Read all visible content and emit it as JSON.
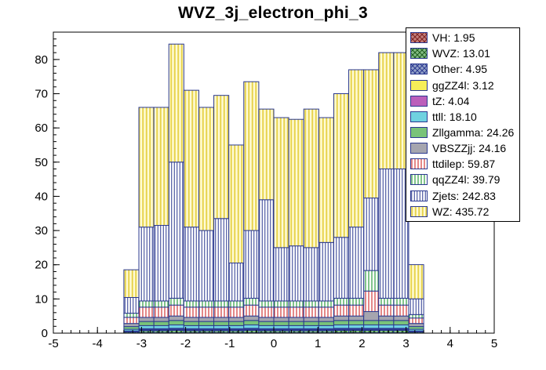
{
  "title": "WVZ_3j_electron_phi_3",
  "chart_data": {
    "type": "bar",
    "stacked": true,
    "title": "WVZ_3j_electron_phi_3",
    "xlabel": "",
    "ylabel": "",
    "grid": false,
    "legend_position": "top-right",
    "line_color": "#2b3990",
    "xlim": [
      -5,
      5
    ],
    "ylim": [
      0,
      88
    ],
    "x_ticks": [
      -5,
      -4,
      -3,
      -2,
      -1,
      0,
      1,
      2,
      3,
      4,
      5
    ],
    "y_ticks": [
      0,
      10,
      20,
      30,
      40,
      50,
      60,
      70,
      80
    ],
    "x_minor_step": 0.2,
    "y_minor_step": 2,
    "bin_edges": [
      -3.4,
      -3.06,
      -2.72,
      -2.38,
      -2.04,
      -1.7,
      -1.36,
      -1.02,
      -0.68,
      -0.34,
      0,
      0.34,
      0.68,
      1.02,
      1.36,
      1.7,
      2.04,
      2.38,
      2.72,
      3.06,
      3.4
    ],
    "series": [
      {
        "name": "vh",
        "legend_label": "VH: 1.95",
        "integral": 1.95,
        "fill": "url(#pat-vh)",
        "color": "#c4807c",
        "values": [
          0.05,
          0.1,
          0.1,
          0.1,
          0.1,
          0.1,
          0.1,
          0.1,
          0.1,
          0.1,
          0.1,
          0.1,
          0.1,
          0.1,
          0.1,
          0.1,
          0.1,
          0.1,
          0.1,
          0.05
        ]
      },
      {
        "name": "wvz",
        "legend_label": "WVZ: 13.01",
        "integral": 13.01,
        "fill": "url(#pat-wvz)",
        "color": "#84bd84",
        "values": [
          0.3,
          0.6,
          0.6,
          0.7,
          0.6,
          0.6,
          0.6,
          0.6,
          0.7,
          0.6,
          0.6,
          0.6,
          0.6,
          0.6,
          0.7,
          0.7,
          0.7,
          0.7,
          0.7,
          0.3
        ]
      },
      {
        "name": "other",
        "legend_label": "Other: 4.95",
        "integral": 4.95,
        "fill": "url(#pat-other)",
        "color": "#93a2c8",
        "values": [
          0.1,
          0.25,
          0.25,
          0.25,
          0.25,
          0.25,
          0.25,
          0.25,
          0.25,
          0.25,
          0.25,
          0.25,
          0.25,
          0.25,
          0.25,
          0.25,
          0.25,
          0.25,
          0.25,
          0.1
        ]
      },
      {
        "name": "ggzz4l",
        "legend_label": "ggZZ4l: 3.12",
        "integral": 3.12,
        "fill": "#f6ee58",
        "color": "#f6ee58",
        "values": [
          0.08,
          0.16,
          0.16,
          0.16,
          0.16,
          0.16,
          0.16,
          0.16,
          0.16,
          0.16,
          0.16,
          0.16,
          0.16,
          0.16,
          0.16,
          0.16,
          0.16,
          0.16,
          0.16,
          0.08
        ]
      },
      {
        "name": "tz",
        "legend_label": "tZ: 4.04",
        "integral": 4.04,
        "fill": "#bb5fbb",
        "color": "#bb5fbb",
        "values": [
          0.1,
          0.2,
          0.2,
          0.2,
          0.2,
          0.2,
          0.2,
          0.2,
          0.2,
          0.2,
          0.2,
          0.2,
          0.2,
          0.2,
          0.2,
          0.2,
          0.2,
          0.2,
          0.2,
          0.1
        ]
      },
      {
        "name": "ttll",
        "legend_label": "ttll: 18.10",
        "integral": 18.1,
        "fill": "#6fd2e0",
        "color": "#6fd2e0",
        "values": [
          0.5,
          0.9,
          0.9,
          1.0,
          0.9,
          0.9,
          0.9,
          0.9,
          1.0,
          0.9,
          0.9,
          0.9,
          0.9,
          0.9,
          1.0,
          1.0,
          1.0,
          1.0,
          1.0,
          0.5
        ]
      },
      {
        "name": "zllgamma",
        "legend_label": "Zllgamma: 24.26",
        "integral": 24.26,
        "fill": "#79c379",
        "color": "#79c379",
        "values": [
          0.8,
          1.2,
          1.2,
          1.3,
          1.2,
          1.2,
          1.2,
          1.2,
          1.3,
          1.2,
          1.2,
          1.2,
          1.2,
          1.2,
          1.3,
          1.3,
          1.3,
          1.3,
          1.3,
          0.8
        ]
      },
      {
        "name": "vbszzjj",
        "legend_label": "VBSZZjj: 24.16",
        "integral": 24.16,
        "fill": "#a5a5af",
        "color": "#a5a5af",
        "values": [
          0.9,
          1.2,
          1.2,
          1.3,
          1.2,
          1.2,
          1.2,
          1.2,
          1.3,
          1.2,
          1.2,
          1.2,
          1.2,
          1.2,
          1.3,
          1.3,
          2.6,
          1.3,
          1.3,
          0.9
        ]
      },
      {
        "name": "ttdilep",
        "legend_label": "ttdilep: 59.87",
        "integral": 59.87,
        "fill": "url(#pat-ttdilep)",
        "color": "#d23a3a",
        "values": [
          1.8,
          3.0,
          3.0,
          3.2,
          3.0,
          3.0,
          3.0,
          3.0,
          3.2,
          3.0,
          3.0,
          3.0,
          3.0,
          3.0,
          3.2,
          3.2,
          6.0,
          3.2,
          3.2,
          1.6
        ]
      },
      {
        "name": "qqzz4l",
        "legend_label": "qqZZ4l: 39.79",
        "integral": 39.79,
        "fill": "url(#pat-qqzz)",
        "color": "#2f9e3f",
        "values": [
          1.2,
          1.8,
          1.8,
          2.0,
          1.8,
          1.8,
          1.8,
          1.8,
          2.0,
          1.8,
          1.8,
          1.8,
          1.8,
          1.8,
          2.0,
          2.0,
          6.0,
          2.0,
          2.0,
          1.0
        ]
      },
      {
        "name": "zjets",
        "legend_label": "Zjets: 242.83",
        "integral": 242.83,
        "fill": "url(#pat-zjets)",
        "color": "#2b3990",
        "values": [
          4.6,
          21.6,
          22.1,
          39.8,
          21.6,
          20.6,
          24.1,
          11.1,
          19.8,
          29.6,
          15.6,
          16.1,
          15.6,
          17.1,
          17.8,
          20.8,
          21.2,
          37.8,
          37.8,
          4.6
        ]
      },
      {
        "name": "wz",
        "legend_label": "WZ: 435.72",
        "integral": 435.72,
        "fill": "url(#pat-wz)",
        "color": "#e7d34c",
        "values": [
          8.1,
          35,
          34.5,
          34.5,
          40,
          36,
          36,
          34.5,
          43.5,
          26.5,
          38,
          37,
          40.5,
          36.5,
          42,
          46,
          37.5,
          34,
          34,
          10
        ]
      }
    ]
  }
}
